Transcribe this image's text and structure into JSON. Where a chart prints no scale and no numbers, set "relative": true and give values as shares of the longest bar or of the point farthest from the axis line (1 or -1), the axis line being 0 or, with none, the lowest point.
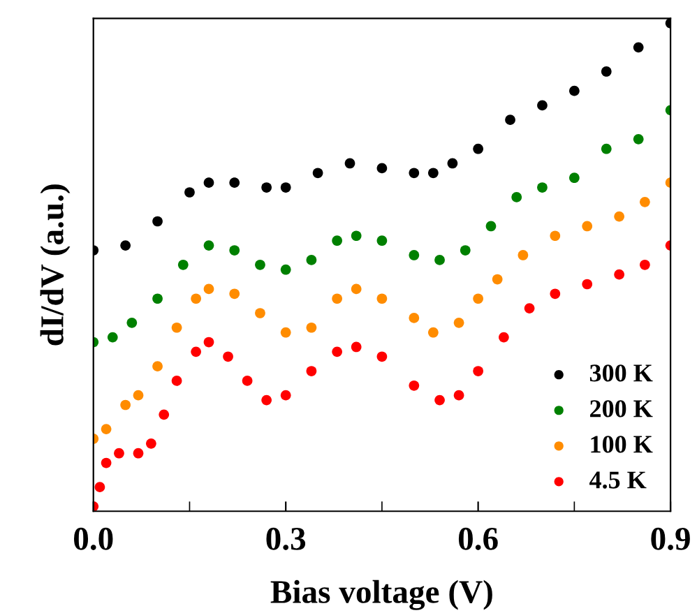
{
  "chart_data": {
    "type": "scatter",
    "relative": true,
    "xlabel": "Bias voltage (V)",
    "ylabel": "dI/dV (a.u.)",
    "xlim": [
      0,
      0.9
    ],
    "xticks": [
      {
        "value": 0,
        "label": "0.0"
      },
      {
        "value": 0.15,
        "label": null
      },
      {
        "value": 0.3,
        "label": "0.3"
      },
      {
        "value": 0.45,
        "label": null
      },
      {
        "value": 0.6,
        "label": "0.6"
      },
      {
        "value": 0.75,
        "label": null
      },
      {
        "value": 0.9,
        "label": "0.9"
      }
    ],
    "tick_labels": "x",
    "grid": false,
    "legend": "bottom right",
    "marker": "circle",
    "series": [
      {
        "name": "300 K",
        "color": "#000000",
        "x": [
          0,
          0.05,
          0.1,
          0.15,
          0.18,
          0.22,
          0.27,
          0.3,
          0.35,
          0.4,
          0.45,
          0.5,
          0.53,
          0.56,
          0.6,
          0.65,
          0.7,
          0.75,
          0.8,
          0.85,
          0.9
        ],
        "values": [
          0.53,
          0.54,
          0.59,
          0.65,
          0.67,
          0.67,
          0.66,
          0.66,
          0.69,
          0.71,
          0.7,
          0.69,
          0.69,
          0.71,
          0.74,
          0.8,
          0.83,
          0.86,
          0.9,
          0.95,
          1.0
        ]
      },
      {
        "name": "200 K",
        "color": "#008000",
        "x": [
          0,
          0.03,
          0.06,
          0.1,
          0.14,
          0.18,
          0.22,
          0.26,
          0.3,
          0.34,
          0.38,
          0.41,
          0.45,
          0.5,
          0.54,
          0.58,
          0.62,
          0.66,
          0.7,
          0.75,
          0.8,
          0.85,
          0.9
        ],
        "values": [
          0.34,
          0.35,
          0.38,
          0.43,
          0.5,
          0.54,
          0.53,
          0.5,
          0.49,
          0.51,
          0.55,
          0.56,
          0.55,
          0.52,
          0.51,
          0.53,
          0.58,
          0.64,
          0.66,
          0.68,
          0.74,
          0.76,
          0.82
        ]
      },
      {
        "name": "100 K",
        "color": "#ff8c00",
        "x": [
          0,
          0.02,
          0.05,
          0.07,
          0.1,
          0.13,
          0.16,
          0.18,
          0.22,
          0.26,
          0.3,
          0.34,
          0.38,
          0.41,
          0.45,
          0.5,
          0.53,
          0.57,
          0.6,
          0.63,
          0.67,
          0.72,
          0.77,
          0.82,
          0.86,
          0.9
        ],
        "values": [
          0.14,
          0.16,
          0.21,
          0.23,
          0.29,
          0.37,
          0.43,
          0.45,
          0.44,
          0.4,
          0.36,
          0.37,
          0.43,
          0.45,
          0.43,
          0.39,
          0.36,
          0.38,
          0.43,
          0.47,
          0.52,
          0.56,
          0.58,
          0.6,
          0.63,
          0.67
        ]
      },
      {
        "name": "4.5 K",
        "color": "#ff0000",
        "x": [
          0,
          0.01,
          0.02,
          0.04,
          0.07,
          0.09,
          0.11,
          0.13,
          0.16,
          0.18,
          0.21,
          0.24,
          0.27,
          0.3,
          0.34,
          0.38,
          0.41,
          0.45,
          0.5,
          0.54,
          0.57,
          0.6,
          0.64,
          0.68,
          0.72,
          0.77,
          0.82,
          0.86,
          0.9
        ],
        "values": [
          0,
          0.04,
          0.09,
          0.11,
          0.11,
          0.13,
          0.19,
          0.26,
          0.32,
          0.34,
          0.31,
          0.26,
          0.22,
          0.23,
          0.28,
          0.32,
          0.33,
          0.31,
          0.25,
          0.22,
          0.23,
          0.28,
          0.35,
          0.41,
          0.44,
          0.46,
          0.48,
          0.5,
          0.54
        ]
      }
    ]
  }
}
